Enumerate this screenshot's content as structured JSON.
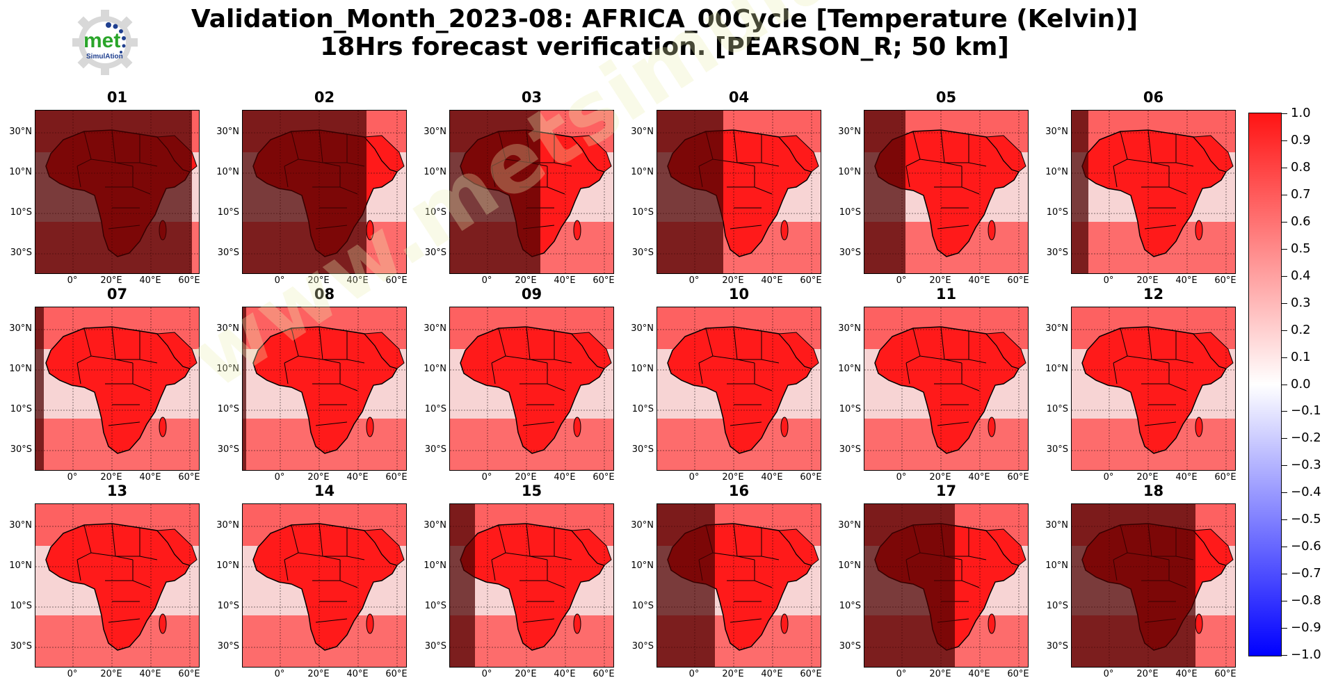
{
  "title_line1": "Validation_Month_2023-08: AFRICA_00Cycle [Temperature (Kelvin)]",
  "title_line2": "18Hrs forecast verification.  [PEARSON_R; 50 km]",
  "logo": {
    "text": "met",
    "subtext": "SimulAtion",
    "icon": "gear-logo-icon",
    "color_text": "#2aa52a",
    "color_dots": "#1f3f8f"
  },
  "watermark_text": "www.metsimulation.com",
  "lat_labels": [
    "30°N",
    "10°N",
    "10°S",
    "30°S"
  ],
  "lon_labels": [
    "0°",
    "20°E",
    "40°E",
    "60°E"
  ],
  "panels": [
    {
      "label": "01",
      "dark": 0.95
    },
    {
      "label": "02",
      "dark": 0.75
    },
    {
      "label": "03",
      "dark": 0.55
    },
    {
      "label": "04",
      "dark": 0.4
    },
    {
      "label": "05",
      "dark": 0.25
    },
    {
      "label": "06",
      "dark": 0.1
    },
    {
      "label": "07",
      "dark": 0.05
    },
    {
      "label": "08",
      "dark": 0.02
    },
    {
      "label": "09",
      "dark": 0.0
    },
    {
      "label": "10",
      "dark": 0.0
    },
    {
      "label": "11",
      "dark": 0.0
    },
    {
      "label": "12",
      "dark": 0.0
    },
    {
      "label": "13",
      "dark": 0.0
    },
    {
      "label": "14",
      "dark": 0.0
    },
    {
      "label": "15",
      "dark": 0.15
    },
    {
      "label": "16",
      "dark": 0.35
    },
    {
      "label": "17",
      "dark": 0.55
    },
    {
      "label": "18",
      "dark": 0.75
    }
  ],
  "colorbar": {
    "min": -1.0,
    "max": 1.0,
    "ticks": [
      "1.0",
      "0.9",
      "0.8",
      "0.7",
      "0.6",
      "0.5",
      "0.4",
      "0.3",
      "0.2",
      "0.1",
      "0.0",
      "−0.1",
      "−0.2",
      "−0.3",
      "−0.4",
      "−0.5",
      "−0.6",
      "−0.7",
      "−0.8",
      "−0.9",
      "−1.0"
    ],
    "color_high": "#ff0000",
    "color_mid": "#ffffff",
    "color_low": "#0000ff"
  },
  "colors": {
    "shade_dark": "#5a0000",
    "land_red": "#ff1a1a",
    "ocean_light": "#f5dede"
  }
}
